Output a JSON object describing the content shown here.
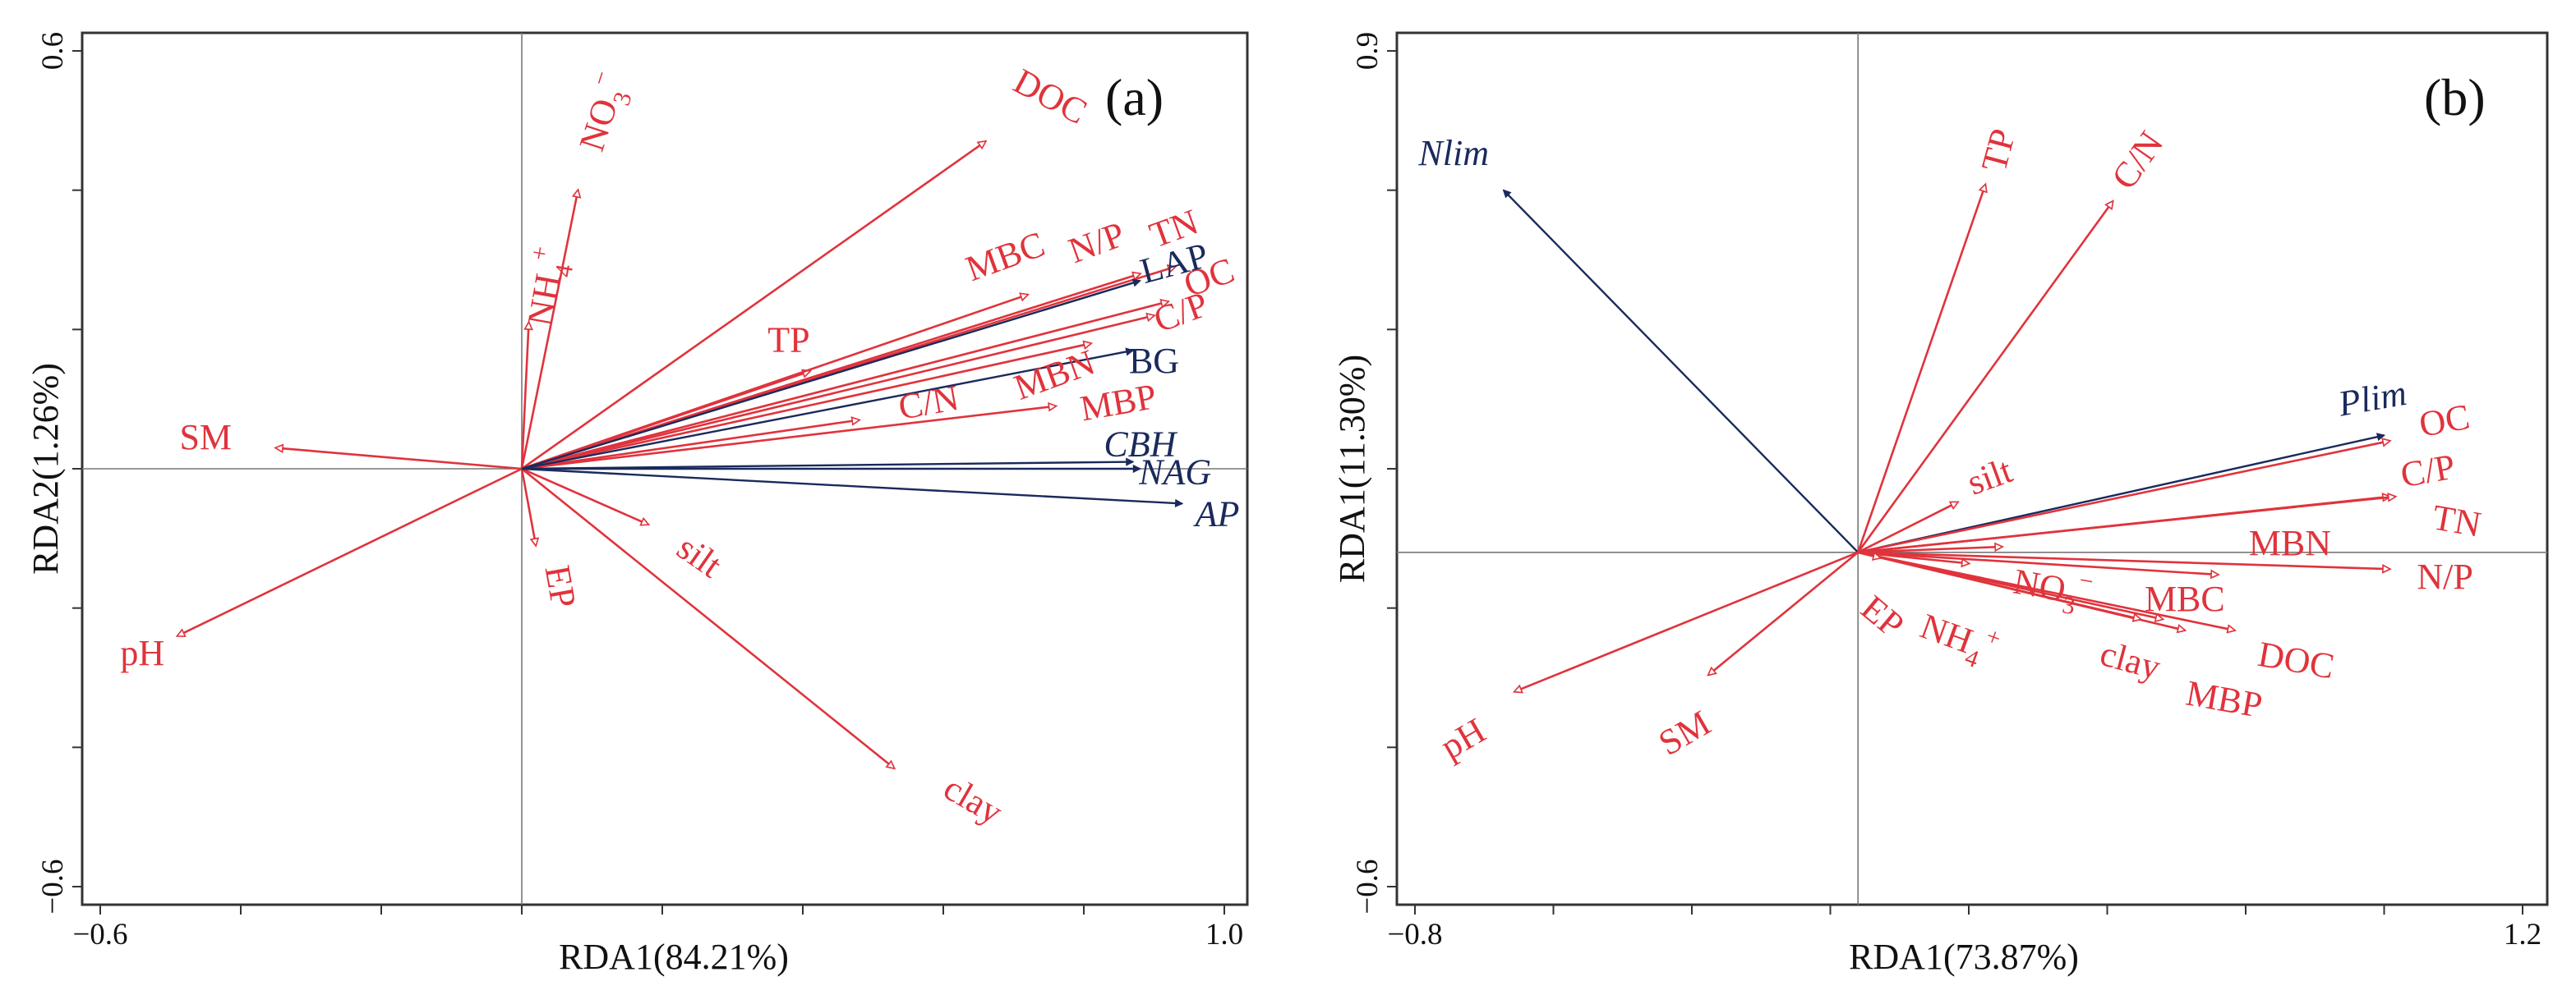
{
  "colors": {
    "env": "#e0333c",
    "enzyme": "#1a2a5c",
    "frame": "#333333",
    "zero": "#777777"
  },
  "chart_data": [
    {
      "type": "scatter",
      "panel": "(a)",
      "xlabel": "RDA1(84.21%)",
      "ylabel": "RDA2(1.26%)",
      "xlim": [
        -0.6,
        1.0
      ],
      "ylim": [
        -0.6,
        0.6
      ],
      "xticks": [
        -0.6,
        1.0
      ],
      "xtick_labels": [
        "−0.6",
        "1.0"
      ],
      "yticks": [
        -0.6,
        0.6
      ],
      "ytick_labels": [
        "−0.6",
        "0.6"
      ],
      "arrows": [
        {
          "name": "SM",
          "group": "env",
          "x": -0.35,
          "y": 0.03
        },
        {
          "name": "pH",
          "group": "env",
          "x": -0.49,
          "y": -0.24
        },
        {
          "name": "NH4+",
          "group": "env",
          "x": 0.01,
          "y": 0.21
        },
        {
          "name": "NO3-",
          "group": "env",
          "x": 0.08,
          "y": 0.4
        },
        {
          "name": "EP",
          "group": "env",
          "x": 0.02,
          "y": -0.11
        },
        {
          "name": "silt",
          "group": "env",
          "x": 0.18,
          "y": -0.08
        },
        {
          "name": "clay",
          "group": "env",
          "x": 0.53,
          "y": -0.43
        },
        {
          "name": "DOC",
          "group": "env",
          "x": 0.66,
          "y": 0.47
        },
        {
          "name": "TP",
          "group": "env",
          "x": 0.41,
          "y": 0.14
        },
        {
          "name": "C/N",
          "group": "env",
          "x": 0.48,
          "y": 0.07
        },
        {
          "name": "MBC",
          "group": "env",
          "x": 0.72,
          "y": 0.25
        },
        {
          "name": "N/P",
          "group": "env",
          "x": 0.88,
          "y": 0.28
        },
        {
          "name": "TN",
          "group": "env",
          "x": 0.93,
          "y": 0.29
        },
        {
          "name": "OC",
          "group": "env",
          "x": 0.92,
          "y": 0.24
        },
        {
          "name": "C/P",
          "group": "env",
          "x": 0.9,
          "y": 0.22
        },
        {
          "name": "MBN",
          "group": "env",
          "x": 0.81,
          "y": 0.18
        },
        {
          "name": "MBP",
          "group": "env",
          "x": 0.76,
          "y": 0.09
        },
        {
          "name": "LAP",
          "group": "enzyme",
          "x": 0.88,
          "y": 0.27
        },
        {
          "name": "BG",
          "group": "enzyme",
          "x": 0.87,
          "y": 0.17
        },
        {
          "name": "CBH",
          "group": "enzyme",
          "x": 0.87,
          "y": 0.01
        },
        {
          "name": "NAG",
          "group": "enzyme",
          "x": 0.88,
          "y": 0.0
        },
        {
          "name": "AP",
          "group": "enzyme",
          "x": 0.94,
          "y": -0.05
        }
      ],
      "labels": [
        {
          "text": "SM",
          "group": "env",
          "x": -0.45,
          "y": 0.04,
          "rot": 0
        },
        {
          "text": "pH",
          "group": "env",
          "x": -0.54,
          "y": -0.27,
          "rot": 0
        },
        {
          "text": "NH4+",
          "group": "env",
          "x": 0.04,
          "y": 0.26,
          "rot": -80
        },
        {
          "text": "NO3-",
          "group": "env",
          "x": 0.12,
          "y": 0.51,
          "rot": -72
        },
        {
          "text": "EP",
          "group": "env",
          "x": 0.05,
          "y": -0.17,
          "rot": 80
        },
        {
          "text": "silt",
          "group": "env",
          "x": 0.25,
          "y": -0.13,
          "rot": 35
        },
        {
          "text": "clay",
          "group": "env",
          "x": 0.64,
          "y": -0.48,
          "rot": 30
        },
        {
          "text": "DOC",
          "group": "env",
          "x": 0.75,
          "y": 0.53,
          "rot": 28
        },
        {
          "text": "TP",
          "group": "env",
          "x": 0.38,
          "y": 0.18,
          "rot": 0
        },
        {
          "text": "C/N",
          "group": "env",
          "x": 0.58,
          "y": 0.09,
          "rot": -10
        },
        {
          "text": "MBC",
          "group": "env",
          "x": 0.69,
          "y": 0.3,
          "rot": -20
        },
        {
          "text": "N/P",
          "group": "env",
          "x": 0.82,
          "y": 0.32,
          "rot": -20
        },
        {
          "text": "TN",
          "group": "env",
          "x": 0.93,
          "y": 0.34,
          "rot": -20
        },
        {
          "text": "OC",
          "group": "env",
          "x": 0.98,
          "y": 0.27,
          "rot": -20
        },
        {
          "text": "C/P",
          "group": "env",
          "x": 0.94,
          "y": 0.22,
          "rot": -20
        },
        {
          "text": "MBN",
          "group": "env",
          "x": 0.76,
          "y": 0.13,
          "rot": -20
        },
        {
          "text": "MBP",
          "group": "env",
          "x": 0.85,
          "y": 0.09,
          "rot": -10
        },
        {
          "text": "LAP",
          "group": "enzyme",
          "x": 0.93,
          "y": 0.29,
          "rot": -15
        },
        {
          "text": "BG",
          "group": "enzyme",
          "x": 0.9,
          "y": 0.15,
          "rot": 0
        },
        {
          "text": "CBH",
          "group": "enzyme",
          "x": 0.88,
          "y": 0.03,
          "rot": 0,
          "italic": true
        },
        {
          "text": "NAG",
          "group": "enzyme",
          "x": 0.93,
          "y": -0.01,
          "rot": 0,
          "italic": true
        },
        {
          "text": "AP",
          "group": "enzyme",
          "x": 0.99,
          "y": -0.07,
          "rot": 0,
          "italic": true
        }
      ]
    },
    {
      "type": "scatter",
      "panel": "(b)",
      "xlabel": "RDA1(73.87%)",
      "ylabel": "RDA1(11.30%)",
      "xlim": [
        -0.8,
        1.2
      ],
      "ylim": [
        -0.6,
        0.9
      ],
      "xticks": [
        -0.8,
        1.2
      ],
      "xtick_labels": [
        "−0.8",
        "1.2"
      ],
      "yticks": [
        -0.6,
        0.9
      ],
      "ytick_labels": [
        "−0.6",
        "0.9"
      ],
      "arrows": [
        {
          "name": "Nlim",
          "group": "enzyme",
          "x": -0.64,
          "y": 0.65
        },
        {
          "name": "Plim",
          "group": "enzyme",
          "x": 0.95,
          "y": 0.21
        },
        {
          "name": "TP",
          "group": "env",
          "x": 0.23,
          "y": 0.66
        },
        {
          "name": "C/N",
          "group": "env",
          "x": 0.46,
          "y": 0.63
        },
        {
          "name": "silt",
          "group": "env",
          "x": 0.18,
          "y": 0.09
        },
        {
          "name": "OC",
          "group": "env",
          "x": 0.96,
          "y": 0.2
        },
        {
          "name": "C/P",
          "group": "env",
          "x": 0.96,
          "y": 0.1
        },
        {
          "name": "TN",
          "group": "env",
          "x": 0.97,
          "y": 0.1
        },
        {
          "name": "N/P",
          "group": "env",
          "x": 0.96,
          "y": -0.03
        },
        {
          "name": "MBN",
          "group": "env",
          "x": 0.65,
          "y": -0.04
        },
        {
          "name": "MBC",
          "group": "env",
          "x": 0.55,
          "y": -0.12
        },
        {
          "name": "DOC",
          "group": "env",
          "x": 0.68,
          "y": -0.14
        },
        {
          "name": "MBP",
          "group": "env",
          "x": 0.59,
          "y": -0.14
        },
        {
          "name": "clay",
          "group": "env",
          "x": 0.51,
          "y": -0.12
        },
        {
          "name": "NO3-",
          "group": "env",
          "x": 0.26,
          "y": 0.01
        },
        {
          "name": "NH4+",
          "group": "env",
          "x": 0.2,
          "y": -0.02
        },
        {
          "name": "EP",
          "group": "env",
          "x": 0.04,
          "y": -0.01
        },
        {
          "name": "pH",
          "group": "env",
          "x": -0.62,
          "y": -0.25
        },
        {
          "name": "SM",
          "group": "env",
          "x": -0.27,
          "y": -0.22
        }
      ],
      "labels": [
        {
          "text": "Nlim",
          "group": "enzyme",
          "x": -0.73,
          "y": 0.71,
          "rot": 0,
          "italic": true
        },
        {
          "text": "Plim",
          "group": "enzyme",
          "x": 0.93,
          "y": 0.27,
          "rot": -10,
          "italic": true
        },
        {
          "text": "TP",
          "group": "env",
          "x": 0.26,
          "y": 0.72,
          "rot": -75
        },
        {
          "text": "C/N",
          "group": "env",
          "x": 0.51,
          "y": 0.7,
          "rot": -55
        },
        {
          "text": "silt",
          "group": "env",
          "x": 0.24,
          "y": 0.13,
          "rot": -20
        },
        {
          "text": "OC",
          "group": "env",
          "x": 1.06,
          "y": 0.23,
          "rot": -10
        },
        {
          "text": "C/P",
          "group": "env",
          "x": 1.03,
          "y": 0.14,
          "rot": -10
        },
        {
          "text": "TN",
          "group": "env",
          "x": 1.08,
          "y": 0.05,
          "rot": 10
        },
        {
          "text": "MBN",
          "group": "env",
          "x": 0.78,
          "y": 0.01,
          "rot": 0
        },
        {
          "text": "N/P",
          "group": "env",
          "x": 1.06,
          "y": -0.05,
          "rot": 0
        },
        {
          "text": "MBC",
          "group": "env",
          "x": 0.59,
          "y": -0.09,
          "rot": 0
        },
        {
          "text": "NO3-",
          "group": "env",
          "x": 0.35,
          "y": -0.07,
          "rot": 10
        },
        {
          "text": "NH4+",
          "group": "env",
          "x": 0.18,
          "y": -0.16,
          "rot": 20
        },
        {
          "text": "DOC",
          "group": "env",
          "x": 0.79,
          "y": -0.2,
          "rot": 10
        },
        {
          "text": "clay",
          "group": "env",
          "x": 0.49,
          "y": -0.2,
          "rot": 15
        },
        {
          "text": "MBP",
          "group": "env",
          "x": 0.66,
          "y": -0.27,
          "rot": 10
        },
        {
          "text": "EP",
          "group": "env",
          "x": 0.04,
          "y": -0.12,
          "rot": 40
        },
        {
          "text": "pH",
          "group": "env",
          "x": -0.71,
          "y": -0.34,
          "rot": -30
        },
        {
          "text": "SM",
          "group": "env",
          "x": -0.31,
          "y": -0.33,
          "rot": -30
        }
      ]
    }
  ]
}
